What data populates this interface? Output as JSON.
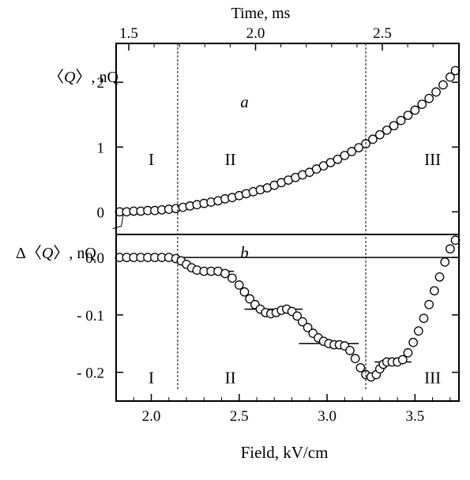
{
  "chart_data": [
    {
      "type": "scatter",
      "panel_label": "a",
      "top_axis_label": "Time,  ms",
      "top_ticks": [
        1.5,
        2.0,
        2.5
      ],
      "top_tick_labels": [
        "1.5",
        "2.0",
        "2.5"
      ],
      "ylabel_html_parts": [
        "〈",
        "Q",
        "〉, nQ"
      ],
      "xlim": [
        1.8,
        3.75
      ],
      "ylim": [
        -0.35,
        2.6
      ],
      "yticks": [
        0,
        1,
        2
      ],
      "ytick_labels": [
        "0",
        "1",
        "2"
      ],
      "region_labels": [
        {
          "text": "I",
          "x": 2.0,
          "y": 0.72
        },
        {
          "text": "II",
          "x": 2.45,
          "y": 0.72
        },
        {
          "text": "III",
          "x": 3.6,
          "y": 0.72
        }
      ],
      "vlines": [
        2.15,
        3.22
      ],
      "series": [
        {
          "x": [
            1.82,
            1.86,
            1.9,
            1.94,
            1.98,
            2.02,
            2.06,
            2.1,
            2.14,
            2.18,
            2.22,
            2.26,
            2.3,
            2.34,
            2.38,
            2.42,
            2.46,
            2.5,
            2.54,
            2.58,
            2.62,
            2.66,
            2.7,
            2.74,
            2.78,
            2.82,
            2.86,
            2.9,
            2.94,
            2.98,
            3.02,
            3.06,
            3.1,
            3.14,
            3.18,
            3.22,
            3.26,
            3.3,
            3.34,
            3.38,
            3.42,
            3.46,
            3.5,
            3.54,
            3.58,
            3.62,
            3.66,
            3.7,
            3.73
          ],
          "y": [
            0.0,
            0.0,
            0.01,
            0.01,
            0.02,
            0.02,
            0.03,
            0.04,
            0.05,
            0.07,
            0.09,
            0.11,
            0.13,
            0.15,
            0.17,
            0.2,
            0.22,
            0.25,
            0.28,
            0.31,
            0.34,
            0.37,
            0.41,
            0.45,
            0.49,
            0.53,
            0.57,
            0.61,
            0.66,
            0.71,
            0.76,
            0.81,
            0.87,
            0.93,
            0.99,
            1.05,
            1.12,
            1.19,
            1.26,
            1.33,
            1.41,
            1.49,
            1.57,
            1.66,
            1.75,
            1.85,
            1.96,
            2.08,
            2.18
          ]
        }
      ]
    },
    {
      "type": "scatter",
      "panel_label": "b",
      "xlabel": "Field,  kV/cm",
      "ylabel_html_parts": [
        "Δ〈",
        "Q",
        "〉, nQ"
      ],
      "xlim": [
        1.8,
        3.75
      ],
      "ylim": [
        -0.25,
        0.04
      ],
      "xticks": [
        2.0,
        2.5,
        3.0,
        3.5
      ],
      "xtick_labels": [
        "2.0",
        "2.5",
        "3.0",
        "3.5"
      ],
      "yticks": [
        0.0,
        -0.1,
        -0.2
      ],
      "ytick_labels": [
        "0.0",
        "- 0.1",
        "- 0.2"
      ],
      "region_labels": [
        {
          "text": "I",
          "x": 2.0,
          "y": -0.219
        },
        {
          "text": "II",
          "x": 2.45,
          "y": -0.219
        },
        {
          "text": "III",
          "x": 3.6,
          "y": -0.219
        }
      ],
      "vlines": [
        2.15,
        3.22
      ],
      "hsegments": [
        {
          "x0": 2.28,
          "x1": 2.47,
          "y": -0.024
        },
        {
          "x0": 2.53,
          "x1": 2.86,
          "y": -0.09
        },
        {
          "x0": 2.84,
          "x1": 3.18,
          "y": -0.15
        },
        {
          "x0": 3.27,
          "x1": 3.48,
          "y": -0.182
        }
      ],
      "series": [
        {
          "x": [
            1.82,
            1.86,
            1.9,
            1.94,
            1.98,
            2.02,
            2.06,
            2.1,
            2.14,
            2.17,
            2.2,
            2.23,
            2.26,
            2.3,
            2.34,
            2.38,
            2.42,
            2.46,
            2.5,
            2.53,
            2.56,
            2.59,
            2.62,
            2.65,
            2.68,
            2.71,
            2.74,
            2.77,
            2.8,
            2.83,
            2.86,
            2.89,
            2.92,
            2.95,
            2.98,
            3.01,
            3.04,
            3.07,
            3.1,
            3.13,
            3.16,
            3.19,
            3.22,
            3.25,
            3.28,
            3.3,
            3.32,
            3.34,
            3.37,
            3.4,
            3.43,
            3.46,
            3.49,
            3.52,
            3.55,
            3.58,
            3.61,
            3.64,
            3.67,
            3.7,
            3.73
          ],
          "y": [
            0.0,
            0.0,
            0.0,
            0.0,
            0.0,
            0.0,
            0.0,
            0.0,
            -0.002,
            -0.006,
            -0.012,
            -0.018,
            -0.022,
            -0.024,
            -0.024,
            -0.024,
            -0.028,
            -0.036,
            -0.048,
            -0.06,
            -0.072,
            -0.082,
            -0.09,
            -0.096,
            -0.098,
            -0.096,
            -0.092,
            -0.09,
            -0.094,
            -0.102,
            -0.112,
            -0.122,
            -0.132,
            -0.14,
            -0.146,
            -0.15,
            -0.152,
            -0.152,
            -0.154,
            -0.162,
            -0.176,
            -0.192,
            -0.204,
            -0.208,
            -0.204,
            -0.194,
            -0.186,
            -0.182,
            -0.182,
            -0.182,
            -0.178,
            -0.166,
            -0.148,
            -0.128,
            -0.106,
            -0.082,
            -0.058,
            -0.034,
            -0.008,
            0.015,
            0.03
          ]
        }
      ]
    }
  ]
}
